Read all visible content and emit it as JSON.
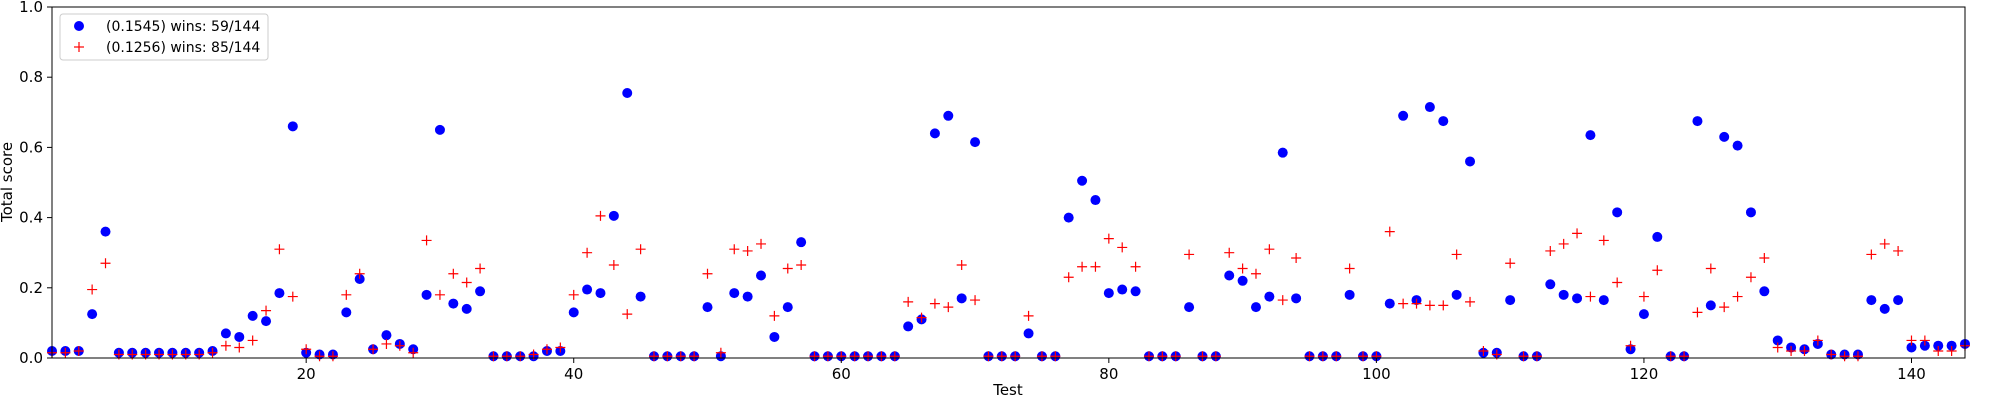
{
  "chart_data": {
    "type": "scatter",
    "title": "",
    "xlabel": "Test",
    "ylabel": "Total score",
    "xlim": [
      1,
      144
    ],
    "ylim": [
      0,
      1.0
    ],
    "x_ticks": [
      20,
      40,
      60,
      80,
      100,
      120,
      140
    ],
    "y_ticks": [
      0.0,
      0.2,
      0.4,
      0.6,
      0.8,
      1.0
    ],
    "x_tick_labels": [
      "20",
      "40",
      "60",
      "80",
      "100",
      "120",
      "140"
    ],
    "y_tick_labels": [
      "0.0",
      "0.2",
      "0.4",
      "0.6",
      "0.8",
      "1.0"
    ],
    "grid": false,
    "legend_position": "top-left",
    "series": [
      {
        "name": "(0.1545) wins: 59/144",
        "color": "#0000ff",
        "marker": "circle",
        "x": [
          1,
          2,
          3,
          4,
          5,
          6,
          7,
          8,
          9,
          10,
          11,
          12,
          13,
          14,
          15,
          16,
          17,
          18,
          19,
          20,
          21,
          22,
          23,
          24,
          25,
          26,
          27,
          28,
          29,
          30,
          31,
          32,
          33,
          34,
          35,
          36,
          37,
          38,
          39,
          40,
          41,
          42,
          43,
          44,
          45,
          46,
          47,
          48,
          49,
          50,
          51,
          52,
          53,
          54,
          55,
          56,
          57,
          58,
          59,
          60,
          61,
          62,
          63,
          64,
          65,
          66,
          67,
          68,
          69,
          70,
          71,
          72,
          73,
          74,
          75,
          76,
          77,
          78,
          79,
          80,
          81,
          82,
          83,
          84,
          85,
          86,
          87,
          88,
          89,
          90,
          91,
          92,
          93,
          94,
          95,
          96,
          97,
          98,
          99,
          100,
          101,
          102,
          103,
          104,
          105,
          106,
          107,
          108,
          109,
          110,
          111,
          112,
          113,
          114,
          115,
          116,
          117,
          118,
          119,
          120,
          121,
          122,
          123,
          124,
          125,
          126,
          127,
          128,
          129,
          130,
          131,
          132,
          133,
          134,
          135,
          136,
          137,
          138,
          139,
          140,
          141,
          142,
          143,
          144
        ],
        "y": [
          0.02,
          0.02,
          0.02,
          0.125,
          0.36,
          0.015,
          0.015,
          0.015,
          0.015,
          0.015,
          0.015,
          0.015,
          0.02,
          0.07,
          0.06,
          0.12,
          0.105,
          0.185,
          0.66,
          0.015,
          0.01,
          0.01,
          0.13,
          0.225,
          0.025,
          0.065,
          0.04,
          0.025,
          0.18,
          0.65,
          0.155,
          0.14,
          0.19,
          0.005,
          0.005,
          0.005,
          0.005,
          0.02,
          0.02,
          0.13,
          0.195,
          0.185,
          0.405,
          0.755,
          0.175,
          0.005,
          0.005,
          0.005,
          0.005,
          0.145,
          0.005,
          0.185,
          0.175,
          0.235,
          0.06,
          0.145,
          0.33,
          0.005,
          0.005,
          0.005,
          0.005,
          0.005,
          0.005,
          0.005,
          0.09,
          0.11,
          0.64,
          0.69,
          0.17,
          0.615,
          0.005,
          0.005,
          0.005,
          0.07,
          0.005,
          0.005,
          0.4,
          0.505,
          0.45,
          0.185,
          0.195,
          0.19,
          0.005,
          0.005,
          0.005,
          0.145,
          0.005,
          0.005,
          0.235,
          0.22,
          0.145,
          0.175,
          0.585,
          0.17,
          0.005,
          0.005,
          0.005,
          0.18,
          0.005,
          0.005,
          0.155,
          0.69,
          0.165,
          0.715,
          0.675,
          0.18,
          0.56,
          0.015,
          0.015,
          0.165,
          0.005,
          0.005,
          0.21,
          0.18,
          0.17,
          0.635,
          0.165,
          0.415,
          0.025,
          0.125,
          0.345,
          0.005,
          0.005,
          0.675,
          0.15,
          0.63,
          0.605,
          0.415,
          0.19,
          0.05,
          0.03,
          0.025,
          0.04,
          0.01,
          0.01,
          0.01,
          0.165,
          0.14,
          0.165,
          0.03,
          0.035,
          0.035,
          0.035,
          0.04
        ]
      },
      {
        "name": "(0.1256) wins: 85/144",
        "color": "#ff0000",
        "marker": "plus",
        "x": [
          1,
          2,
          3,
          4,
          5,
          6,
          7,
          8,
          9,
          10,
          11,
          12,
          13,
          14,
          15,
          16,
          17,
          18,
          19,
          20,
          21,
          22,
          23,
          24,
          25,
          26,
          27,
          28,
          29,
          30,
          31,
          32,
          33,
          34,
          35,
          36,
          37,
          38,
          39,
          40,
          41,
          42,
          43,
          44,
          45,
          46,
          47,
          48,
          49,
          50,
          51,
          52,
          53,
          54,
          55,
          56,
          57,
          58,
          59,
          60,
          61,
          62,
          63,
          64,
          65,
          66,
          67,
          68,
          69,
          70,
          71,
          72,
          73,
          74,
          75,
          76,
          77,
          78,
          79,
          80,
          81,
          82,
          83,
          84,
          85,
          86,
          87,
          88,
          89,
          90,
          91,
          92,
          93,
          94,
          95,
          96,
          97,
          98,
          99,
          100,
          101,
          102,
          103,
          104,
          105,
          106,
          107,
          108,
          109,
          110,
          111,
          112,
          113,
          114,
          115,
          116,
          117,
          118,
          119,
          120,
          121,
          122,
          123,
          124,
          125,
          126,
          127,
          128,
          129,
          130,
          131,
          132,
          133,
          134,
          135,
          136,
          137,
          138,
          139,
          140,
          141,
          142,
          143,
          144
        ],
        "y": [
          0.015,
          0.015,
          0.02,
          0.195,
          0.27,
          0.01,
          0.01,
          0.01,
          0.01,
          0.01,
          0.01,
          0.01,
          0.015,
          0.035,
          0.03,
          0.05,
          0.135,
          0.31,
          0.175,
          0.025,
          0.005,
          0.005,
          0.18,
          0.24,
          0.025,
          0.04,
          0.035,
          0.015,
          0.335,
          0.18,
          0.24,
          0.215,
          0.255,
          0.005,
          0.005,
          0.005,
          0.01,
          0.025,
          0.03,
          0.18,
          0.3,
          0.405,
          0.265,
          0.125,
          0.31,
          0.005,
          0.005,
          0.005,
          0.005,
          0.24,
          0.015,
          0.31,
          0.305,
          0.325,
          0.12,
          0.255,
          0.265,
          0.005,
          0.005,
          0.005,
          0.005,
          0.005,
          0.005,
          0.005,
          0.16,
          0.115,
          0.155,
          0.145,
          0.265,
          0.165,
          0.005,
          0.005,
          0.005,
          0.12,
          0.005,
          0.005,
          0.23,
          0.26,
          0.26,
          0.34,
          0.315,
          0.26,
          0.005,
          0.005,
          0.005,
          0.295,
          0.005,
          0.005,
          0.3,
          0.255,
          0.24,
          0.31,
          0.165,
          0.285,
          0.005,
          0.005,
          0.005,
          0.255,
          0.005,
          0.005,
          0.36,
          0.155,
          0.155,
          0.15,
          0.15,
          0.295,
          0.16,
          0.02,
          0.01,
          0.27,
          0.005,
          0.005,
          0.305,
          0.325,
          0.355,
          0.175,
          0.335,
          0.215,
          0.035,
          0.175,
          0.25,
          0.005,
          0.005,
          0.13,
          0.255,
          0.145,
          0.175,
          0.23,
          0.285,
          0.03,
          0.02,
          0.02,
          0.05,
          0.01,
          0.005,
          0.005,
          0.295,
          0.325,
          0.305,
          0.05,
          0.05,
          0.02,
          0.02,
          0.035
        ]
      }
    ]
  }
}
